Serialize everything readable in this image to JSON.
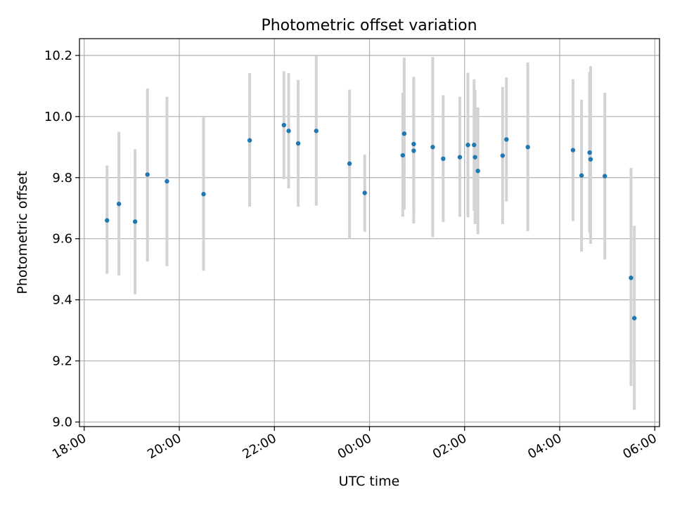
{
  "chart_data": {
    "type": "scatter",
    "title": "Photometric offset variation",
    "xlabel": "UTC time",
    "ylabel": "Photometric offset",
    "x_unit": "hours since 18:00 UTC",
    "xlim": [
      -0.1,
      12.1
    ],
    "ylim": [
      8.985,
      10.255
    ],
    "grid": true,
    "x_ticks": [
      {
        "value": 0,
        "label": "18:00"
      },
      {
        "value": 2,
        "label": "20:00"
      },
      {
        "value": 4,
        "label": "22:00"
      },
      {
        "value": 6,
        "label": "00:00"
      },
      {
        "value": 8,
        "label": "02:00"
      },
      {
        "value": 10,
        "label": "04:00"
      },
      {
        "value": 12,
        "label": "06:00"
      }
    ],
    "y_ticks": [
      {
        "value": 9.0,
        "label": "9.0"
      },
      {
        "value": 9.2,
        "label": "9.2"
      },
      {
        "value": 9.4,
        "label": "9.4"
      },
      {
        "value": 9.6,
        "label": "9.6"
      },
      {
        "value": 9.8,
        "label": "9.8"
      },
      {
        "value": 10.0,
        "label": "10.0"
      },
      {
        "value": 10.2,
        "label": "10.2"
      }
    ],
    "colors": {
      "points": "#1f77b4",
      "errorbars": "#d3d3d3",
      "grid": "#b0b0b0"
    },
    "points": [
      {
        "x": 0.48,
        "y": 9.66,
        "lo": 9.485,
        "hi": 9.84
      },
      {
        "x": 0.73,
        "y": 9.714,
        "lo": 9.48,
        "hi": 9.95
      },
      {
        "x": 1.07,
        "y": 9.656,
        "lo": 9.418,
        "hi": 9.893
      },
      {
        "x": 1.33,
        "y": 9.81,
        "lo": 9.525,
        "hi": 10.092
      },
      {
        "x": 1.74,
        "y": 9.788,
        "lo": 9.51,
        "hi": 10.065
      },
      {
        "x": 2.51,
        "y": 9.746,
        "lo": 9.495,
        "hi": 10.0
      },
      {
        "x": 3.48,
        "y": 9.922,
        "lo": 9.705,
        "hi": 10.142
      },
      {
        "x": 4.2,
        "y": 9.972,
        "lo": 9.795,
        "hi": 10.148
      },
      {
        "x": 4.3,
        "y": 9.953,
        "lo": 9.765,
        "hi": 10.142
      },
      {
        "x": 4.5,
        "y": 9.912,
        "lo": 9.705,
        "hi": 10.12
      },
      {
        "x": 4.88,
        "y": 9.953,
        "lo": 9.708,
        "hi": 10.198
      },
      {
        "x": 5.58,
        "y": 9.846,
        "lo": 9.6,
        "hi": 10.088
      },
      {
        "x": 5.9,
        "y": 9.75,
        "lo": 9.623,
        "hi": 9.876
      },
      {
        "x": 6.7,
        "y": 9.873,
        "lo": 9.672,
        "hi": 10.078
      },
      {
        "x": 6.73,
        "y": 9.944,
        "lo": 9.695,
        "hi": 10.193
      },
      {
        "x": 6.93,
        "y": 9.91,
        "lo": 9.69,
        "hi": 10.13
      },
      {
        "x": 6.93,
        "y": 9.888,
        "lo": 9.65,
        "hi": 10.125
      },
      {
        "x": 7.33,
        "y": 9.9,
        "lo": 9.605,
        "hi": 10.195
      },
      {
        "x": 7.55,
        "y": 9.862,
        "lo": 9.655,
        "hi": 10.07
      },
      {
        "x": 7.9,
        "y": 9.867,
        "lo": 9.672,
        "hi": 10.065
      },
      {
        "x": 8.07,
        "y": 9.907,
        "lo": 9.67,
        "hi": 10.143
      },
      {
        "x": 8.2,
        "y": 9.907,
        "lo": 9.692,
        "hi": 10.122
      },
      {
        "x": 8.22,
        "y": 9.867,
        "lo": 9.648,
        "hi": 10.088
      },
      {
        "x": 8.28,
        "y": 9.822,
        "lo": 9.615,
        "hi": 10.03
      },
      {
        "x": 8.8,
        "y": 9.872,
        "lo": 9.648,
        "hi": 10.097
      },
      {
        "x": 8.88,
        "y": 9.925,
        "lo": 9.722,
        "hi": 10.128
      },
      {
        "x": 9.33,
        "y": 9.9,
        "lo": 9.625,
        "hi": 10.177
      },
      {
        "x": 10.28,
        "y": 9.89,
        "lo": 9.658,
        "hi": 10.122
      },
      {
        "x": 10.46,
        "y": 9.807,
        "lo": 9.558,
        "hi": 10.055
      },
      {
        "x": 10.63,
        "y": 9.882,
        "lo": 9.62,
        "hi": 10.145
      },
      {
        "x": 10.65,
        "y": 9.86,
        "lo": 9.583,
        "hi": 10.165
      },
      {
        "x": 10.95,
        "y": 9.805,
        "lo": 9.532,
        "hi": 10.078
      },
      {
        "x": 11.5,
        "y": 9.472,
        "lo": 9.118,
        "hi": 9.832
      },
      {
        "x": 11.57,
        "y": 9.34,
        "lo": 9.04,
        "hi": 9.642
      }
    ]
  }
}
